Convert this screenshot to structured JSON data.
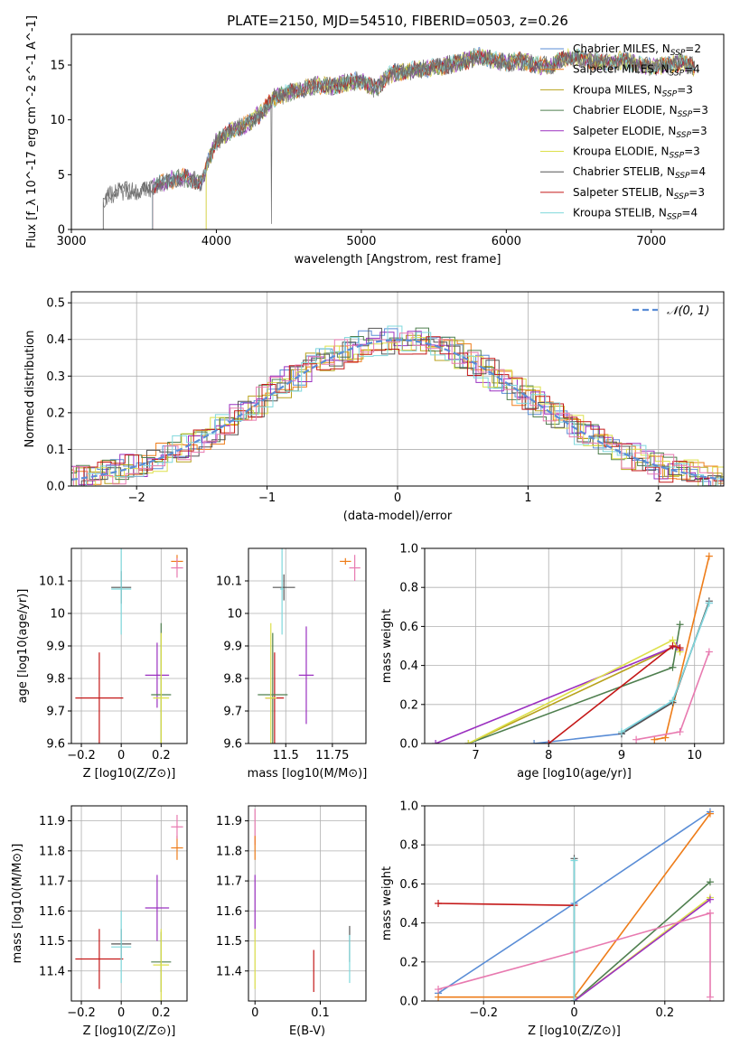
{
  "figure": {
    "title": "PLATE=2150, MJD=54510, FIBERID=0503, z=0.26"
  },
  "chart_data": [
    {
      "type": "line",
      "id": "spectrum",
      "title": "PLATE=2150, MJD=54510, FIBERID=0503, z=0.26",
      "xlabel": "wavelength [Angstrom, rest frame]",
      "ylabel": "Flux [f_λ 10^-17 erg cm^-2 s^-1 A^-1]",
      "xlim": [
        3000,
        7500
      ],
      "ylim": [
        0,
        17.8
      ],
      "xticks": [
        3000,
        4000,
        5000,
        6000,
        7000
      ],
      "yticks": [
        0,
        5,
        10,
        15
      ],
      "grid": false,
      "legend_position": "top-right",
      "spectrum_envelope": {
        "x": [
          3220,
          3300,
          3400,
          3500,
          3560,
          3620,
          3700,
          3800,
          3900,
          3950,
          4000,
          4100,
          4200,
          4300,
          4400,
          4500,
          4600,
          4700,
          4800,
          4900,
          5000,
          5100,
          5200,
          5300,
          5400,
          5500,
          5600,
          5700,
          5800,
          5900,
          6000,
          6100,
          6200,
          6300,
          6400,
          6500,
          6600,
          6700,
          6800,
          6900,
          7000,
          7100,
          7200,
          7300
        ],
        "y": [
          2.8,
          3.4,
          3.6,
          3.5,
          3.9,
          4.2,
          4.6,
          4.7,
          4.2,
          6.5,
          8.0,
          9.0,
          9.5,
          10.5,
          12.0,
          12.5,
          12.8,
          13.2,
          13.0,
          13.4,
          13.6,
          12.8,
          14.2,
          14.4,
          14.6,
          14.8,
          15.0,
          15.3,
          15.8,
          15.5,
          15.2,
          15.4,
          15.0,
          14.9,
          15.6,
          15.7,
          15.3,
          15.2,
          15.4,
          15.1,
          14.8,
          15.0,
          15.2,
          14.9
        ]
      },
      "series": [
        {
          "name": "Chabrier MILES, N_SSP=2",
          "color": "#5a8dd6"
        },
        {
          "name": "Salpeter MILES, N_SSP=4",
          "color": "#ee7d1a"
        },
        {
          "name": "Kroupa MILES, N_SSP=3",
          "color": "#b8a21c"
        },
        {
          "name": "Chabrier ELODIE, N_SSP=3",
          "color": "#4f7f4f"
        },
        {
          "name": "Salpeter ELODIE, N_SSP=3",
          "color": "#9b30c0"
        },
        {
          "name": "Kroupa ELODIE, N_SSP=3",
          "color": "#dde04a"
        },
        {
          "name": "Chabrier STELIB, N_SSP=4",
          "color": "#555555"
        },
        {
          "name": "Salpeter STELIB, N_SSP=3",
          "color": "#c41818"
        },
        {
          "name": "Kroupa STELIB, N_SSP=4",
          "color": "#7fd8dc"
        }
      ]
    },
    {
      "type": "histogram",
      "id": "residuals",
      "xlabel": "(data-model)/error",
      "ylabel": "Normed distribution",
      "xlim": [
        -2.5,
        2.5
      ],
      "ylim": [
        0,
        0.53
      ],
      "xticks": [
        -2,
        -1,
        0,
        1,
        2
      ],
      "yticks": [
        0.0,
        0.1,
        0.2,
        0.3,
        0.4,
        0.5
      ],
      "grid": true,
      "legend": "N(0,1)",
      "legend_position": "top-right",
      "gaussian": {
        "mean": 0,
        "sigma": 1,
        "color": "#5a8dd6"
      }
    },
    {
      "type": "scatter",
      "id": "age-vs-Z",
      "xlabel": "Z [log10(Z/Z⊙)]",
      "ylabel": "age  [log10(age/yr)]",
      "xlim": [
        -0.25,
        0.33
      ],
      "ylim": [
        9.6,
        10.2
      ],
      "xticks": [
        -0.2,
        0.0,
        0.2
      ],
      "yticks": [
        9.6,
        9.7,
        9.8,
        9.9,
        10.0,
        10.1
      ],
      "grid": true,
      "points": [
        {
          "x": -0.11,
          "y": 9.74,
          "xerr": 0.12,
          "yerr": 0.14,
          "color": "#c41818"
        },
        {
          "x": 0.0,
          "y": 10.08,
          "xerr": 0.05,
          "yerr": 0.05,
          "color": "#555555"
        },
        {
          "x": 0.0,
          "y": 10.075,
          "xerr": 0.05,
          "yerr": 0.14,
          "color": "#7fd8dc"
        },
        {
          "x": 0.18,
          "y": 9.81,
          "xerr": 0.06,
          "yerr": 0.1,
          "color": "#9b30c0"
        },
        {
          "x": 0.2,
          "y": 9.75,
          "xerr": 0.05,
          "yerr": 0.22,
          "color": "#4f7f4f"
        },
        {
          "x": 0.2,
          "y": 9.74,
          "xerr": 0.04,
          "yerr": 0.2,
          "color": "#dde04a"
        },
        {
          "x": 0.28,
          "y": 10.16,
          "xerr": 0.03,
          "yerr": 0.02,
          "color": "#ee7d1a"
        },
        {
          "x": 0.28,
          "y": 10.14,
          "xerr": 0.03,
          "yerr": 0.03,
          "color": "#e87ab0"
        }
      ]
    },
    {
      "type": "scatter",
      "id": "age-vs-mass",
      "xlabel": "mass [log10(M/M⊙)]",
      "ylabel": "",
      "xlim": [
        11.3,
        11.93
      ],
      "ylim": [
        9.6,
        10.2
      ],
      "xticks": [
        11.5,
        11.75
      ],
      "yticks": [
        9.6,
        9.7,
        9.8,
        9.9,
        10.0,
        10.1
      ],
      "grid": true,
      "points": [
        {
          "x": 11.44,
          "y": 9.74,
          "xerr": 0.05,
          "yerr": 0.14,
          "color": "#c41818"
        },
        {
          "x": 11.49,
          "y": 10.08,
          "xerr": 0.06,
          "yerr": 0.04,
          "color": "#555555"
        },
        {
          "x": 11.48,
          "y": 10.075,
          "xerr": 0.01,
          "yerr": 0.14,
          "color": "#7fd8dc"
        },
        {
          "x": 11.61,
          "y": 9.81,
          "xerr": 0.04,
          "yerr": 0.15,
          "color": "#9b30c0"
        },
        {
          "x": 11.43,
          "y": 9.75,
          "xerr": 0.08,
          "yerr": 0.19,
          "color": "#4f7f4f"
        },
        {
          "x": 11.42,
          "y": 9.74,
          "xerr": 0.03,
          "yerr": 0.23,
          "color": "#dde04a"
        },
        {
          "x": 11.82,
          "y": 10.16,
          "xerr": 0.03,
          "yerr": 0.01,
          "color": "#ee7d1a"
        },
        {
          "x": 11.87,
          "y": 10.14,
          "xerr": 0.03,
          "yerr": 0.04,
          "color": "#e87ab0"
        }
      ]
    },
    {
      "type": "line",
      "id": "mass-weight-vs-age",
      "xlabel": "age  [log10(age/yr)]",
      "ylabel": "mass weight",
      "xlim": [
        6.3,
        10.4
      ],
      "ylim": [
        0,
        1.0
      ],
      "xticks": [
        7,
        8,
        9,
        10
      ],
      "yticks": [
        0.0,
        0.2,
        0.4,
        0.6,
        0.8,
        1.0
      ],
      "grid": true,
      "series": [
        {
          "color": "#5a8dd6",
          "x": [
            7.8,
            9.0,
            9.7,
            10.2
          ],
          "y": [
            0.0,
            0.05,
            0.22,
            0.72
          ]
        },
        {
          "color": "#ee7d1a",
          "x": [
            9.45,
            9.6,
            10.2
          ],
          "y": [
            0.02,
            0.03,
            0.96
          ]
        },
        {
          "color": "#b8a21c",
          "x": [
            6.9,
            9.75,
            9.8
          ],
          "y": [
            0.0,
            0.5,
            0.48
          ]
        },
        {
          "color": "#4f7f4f",
          "x": [
            6.9,
            9.7,
            9.8
          ],
          "y": [
            0.0,
            0.39,
            0.61
          ]
        },
        {
          "color": "#9b30c0",
          "x": [
            6.45,
            9.75,
            9.8
          ],
          "y": [
            0.0,
            0.5,
            0.48
          ]
        },
        {
          "color": "#dde04a",
          "x": [
            6.9,
            9.7,
            9.8
          ],
          "y": [
            0.0,
            0.53,
            0.47
          ]
        },
        {
          "color": "#555555",
          "x": [
            9.0,
            9.7,
            10.2
          ],
          "y": [
            0.05,
            0.21,
            0.73
          ]
        },
        {
          "color": "#c41818",
          "x": [
            8.0,
            9.7,
            9.8
          ],
          "y": [
            0.0,
            0.5,
            0.49
          ]
        },
        {
          "color": "#7fd8dc",
          "x": [
            9.0,
            9.7,
            10.2
          ],
          "y": [
            0.06,
            0.22,
            0.72
          ]
        },
        {
          "color": "#e87ab0",
          "x": [
            9.2,
            9.8,
            10.2
          ],
          "y": [
            0.02,
            0.06,
            0.47
          ]
        }
      ]
    },
    {
      "type": "scatter",
      "id": "mass-vs-Z",
      "xlabel": "Z [log10(Z/Z⊙)]",
      "ylabel": "mass [log10(M/M⊙)]",
      "xlim": [
        -0.25,
        0.33
      ],
      "ylim": [
        11.3,
        11.95
      ],
      "xticks": [
        -0.2,
        0.0,
        0.2
      ],
      "yticks": [
        11.4,
        11.5,
        11.6,
        11.7,
        11.8,
        11.9
      ],
      "grid": true,
      "points": [
        {
          "x": -0.11,
          "y": 11.44,
          "xerr": 0.12,
          "yerr": 0.1,
          "color": "#c41818"
        },
        {
          "x": 0.0,
          "y": 11.49,
          "xerr": 0.05,
          "yerr": 0.05,
          "color": "#555555"
        },
        {
          "x": 0.0,
          "y": 11.48,
          "xerr": 0.05,
          "yerr": 0.12,
          "color": "#7fd8dc"
        },
        {
          "x": 0.18,
          "y": 11.61,
          "xerr": 0.06,
          "yerr": 0.11,
          "color": "#9b30c0"
        },
        {
          "x": 0.2,
          "y": 11.43,
          "xerr": 0.05,
          "yerr": 0.1,
          "color": "#4f7f4f"
        },
        {
          "x": 0.2,
          "y": 11.42,
          "xerr": 0.04,
          "yerr": 0.12,
          "color": "#dde04a"
        },
        {
          "x": 0.28,
          "y": 11.81,
          "xerr": 0.03,
          "yerr": 0.04,
          "color": "#ee7d1a"
        },
        {
          "x": 0.28,
          "y": 11.88,
          "xerr": 0.03,
          "yerr": 0.04,
          "color": "#e87ab0"
        }
      ]
    },
    {
      "type": "scatter",
      "id": "mass-vs-EBV",
      "xlabel": "E(B-V)",
      "ylabel": "",
      "xlim": [
        -0.01,
        0.17
      ],
      "ylim": [
        11.3,
        11.95
      ],
      "xticks": [
        0.0,
        0.1
      ],
      "yticks": [
        11.4,
        11.5,
        11.6,
        11.7,
        11.8,
        11.9
      ],
      "grid": true,
      "points": [
        {
          "x": 0.0,
          "y": 11.88,
          "yerr": 0.06,
          "color": "#e87ab0"
        },
        {
          "x": 0.0,
          "y": 11.81,
          "yerr": 0.04,
          "color": "#ee7d1a"
        },
        {
          "x": 0.0,
          "y": 11.63,
          "yerr": 0.09,
          "color": "#9b30c0"
        },
        {
          "x": 0.0,
          "y": 11.44,
          "yerr": 0.1,
          "color": "#dde04a"
        },
        {
          "x": 0.09,
          "y": 11.4,
          "yerr": 0.07,
          "color": "#c41818"
        },
        {
          "x": 0.145,
          "y": 11.49,
          "yerr": 0.06,
          "color": "#555555"
        },
        {
          "x": 0.145,
          "y": 11.44,
          "yerr": 0.08,
          "color": "#7fd8dc"
        }
      ]
    },
    {
      "type": "line",
      "id": "mass-weight-vs-Z",
      "xlabel": "Z [log10(Z/Z⊙)]",
      "ylabel": "mass weight",
      "xlim": [
        -0.33,
        0.33
      ],
      "ylim": [
        0,
        1.0
      ],
      "xticks": [
        -0.2,
        0.0,
        0.2
      ],
      "yticks": [
        0.0,
        0.2,
        0.4,
        0.6,
        0.8,
        1.0
      ],
      "grid": true,
      "series": [
        {
          "color": "#5a8dd6",
          "x": [
            -0.3,
            0.0,
            0.3
          ],
          "y": [
            0.04,
            0.5,
            0.97
          ]
        },
        {
          "color": "#ee7d1a",
          "x": [
            -0.3,
            0.0,
            0.3
          ],
          "y": [
            0.02,
            0.02,
            0.96
          ]
        },
        {
          "color": "#c41818",
          "x": [
            -0.3,
            0.0
          ],
          "y": [
            0.5,
            0.49
          ]
        },
        {
          "color": "#4f7f4f",
          "x": [
            0.0,
            0.3
          ],
          "y": [
            0.0,
            0.61
          ]
        },
        {
          "color": "#dde04a",
          "x": [
            0.0,
            0.3
          ],
          "y": [
            0.0,
            0.53
          ]
        },
        {
          "color": "#9b30c0",
          "x": [
            0.0,
            0.3
          ],
          "y": [
            0.0,
            0.52
          ]
        },
        {
          "color": "#e87ab0",
          "x": [
            -0.3,
            0.0,
            0.3
          ],
          "y": [
            0.06,
            0.25,
            0.45
          ]
        },
        {
          "color": "#555555",
          "x": [
            0.0,
            0.0
          ],
          "y": [
            0.0,
            0.73
          ]
        },
        {
          "color": "#7fd8dc",
          "x": [
            0.0,
            0.0
          ],
          "y": [
            0.0,
            0.72
          ]
        },
        {
          "color": "#e87ab0",
          "x": [
            0.3,
            0.3
          ],
          "y": [
            0.02,
            0.45
          ]
        }
      ]
    }
  ]
}
